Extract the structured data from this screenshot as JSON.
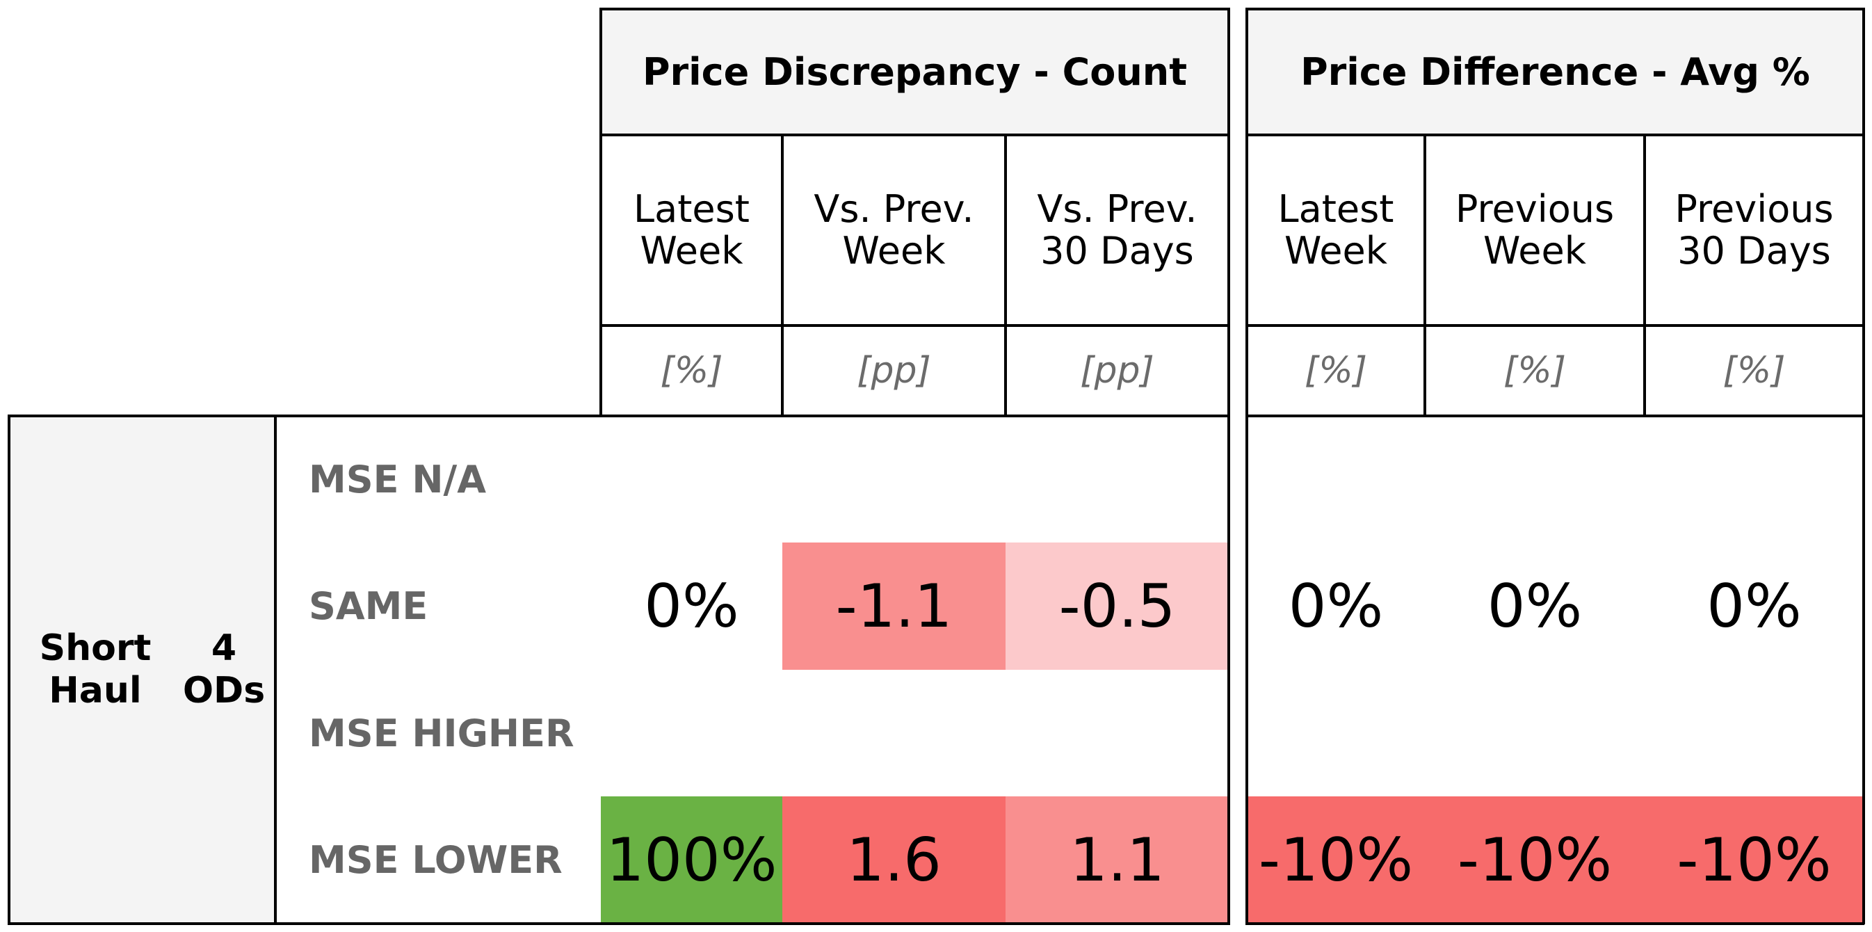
{
  "chart_data": {
    "type": "table",
    "headers": {
      "count": {
        "title": "Price Discrepancy - Count",
        "columns": [
          {
            "label_1": "Latest",
            "label_2": "Week",
            "unit": "[%]"
          },
          {
            "label_1": "Vs. Prev.",
            "label_2": "Week",
            "unit": "[pp]"
          },
          {
            "label_1": "Vs. Prev.",
            "label_2": "30 Days",
            "unit": "[pp]"
          }
        ]
      },
      "avg": {
        "title": "Price Difference - Avg %",
        "columns": [
          {
            "label_1": "Latest",
            "label_2": "Week",
            "unit": "[%]"
          },
          {
            "label_1": "Previous",
            "label_2": "Week",
            "unit": "[%]"
          },
          {
            "label_1": "Previous",
            "label_2": "30 Days",
            "unit": "[%]"
          }
        ]
      }
    },
    "group": {
      "haul_1": "Short",
      "haul_2": "Haul",
      "ods_1": "4",
      "ods_2": "ODs"
    },
    "rows": [
      {
        "label": "MSE N/A",
        "cells": [
          "",
          "",
          "",
          "",
          "",
          ""
        ]
      },
      {
        "label": "SAME",
        "cells": [
          "0%",
          "-1.1",
          "-0.5",
          "0%",
          "0%",
          "0%"
        ]
      },
      {
        "label": "MSE HIGHER",
        "cells": [
          "",
          "",
          "",
          "",
          "",
          ""
        ]
      },
      {
        "label": "MSE LOWER",
        "cells": [
          "100%",
          "1.6",
          "1.1",
          "-10%",
          "-10%",
          "-10%"
        ]
      }
    ],
    "cell_colors": [
      [
        "",
        "",
        "",
        "",
        "",
        ""
      ],
      [
        "",
        "#f98f8f",
        "#fcc9cb",
        "",
        "",
        ""
      ],
      [
        "",
        "",
        "",
        "",
        "",
        ""
      ],
      [
        "#6ab244",
        "#f76b6b",
        "#f98f8f",
        "#f76b6b",
        "#f76b6b",
        "#f76b6b"
      ]
    ],
    "colors": {
      "header_bg": "#f4f4f4",
      "unit_text": "#6b6b6b",
      "row_label": "#666666"
    }
  }
}
